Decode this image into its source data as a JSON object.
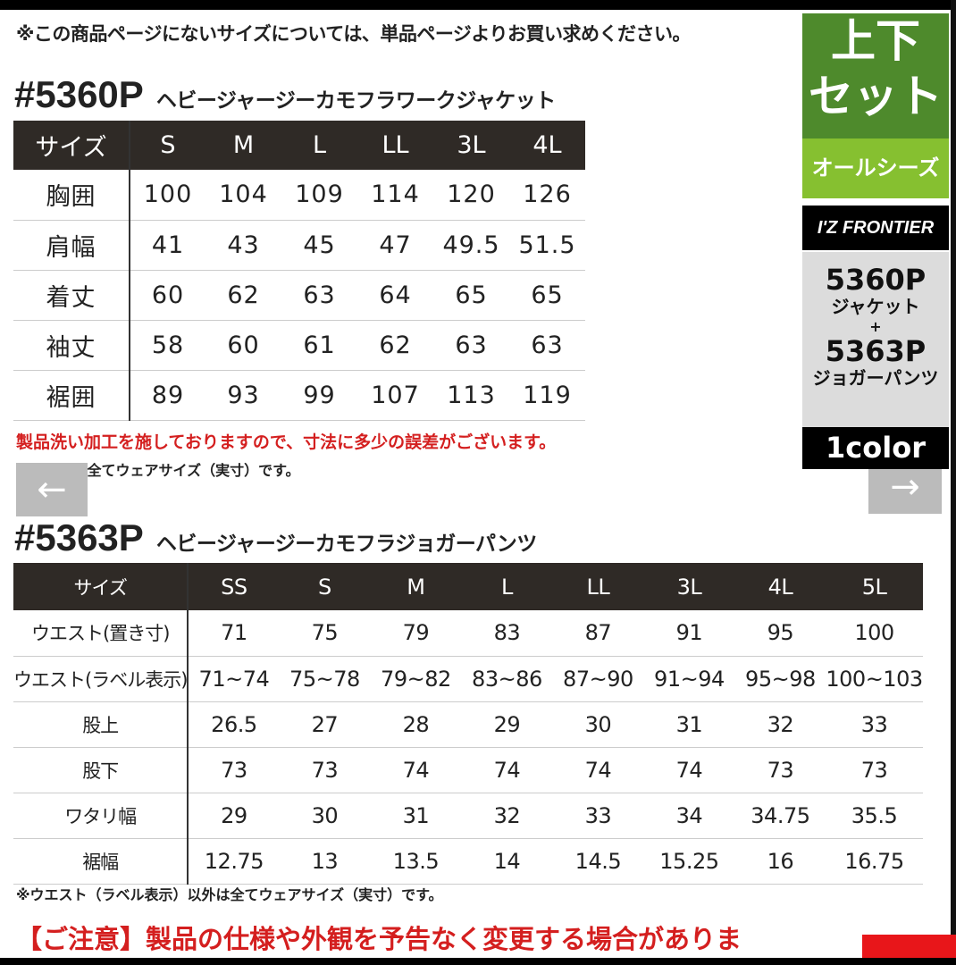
{
  "top_note": "※この商品ページにないサイズについては、単品ページよりお買い求めください。",
  "jacket": {
    "code": "#5360P",
    "name": "ヘビージャージーカモフラワークジャケット",
    "header_label": "サイズ",
    "sizes": [
      "S",
      "M",
      "L",
      "LL",
      "3L",
      "4L"
    ],
    "rows": [
      {
        "label": "胸囲",
        "values": [
          "100",
          "104",
          "109",
          "114",
          "120",
          "126"
        ]
      },
      {
        "label": "肩幅",
        "values": [
          "41",
          "43",
          "45",
          "47",
          "49.5",
          "51.5"
        ]
      },
      {
        "label": "着丈",
        "values": [
          "60",
          "62",
          "63",
          "64",
          "65",
          "65"
        ]
      },
      {
        "label": "袖丈",
        "values": [
          "58",
          "60",
          "61",
          "62",
          "63",
          "63"
        ]
      },
      {
        "label": "裾囲",
        "values": [
          "89",
          "93",
          "99",
          "107",
          "113",
          "119"
        ]
      }
    ],
    "note_red": "製品洗い加工を施しておりますので、寸法に多少の誤差がございます。",
    "note": "※これらは全てウェアサイズ（実寸）です。"
  },
  "pants": {
    "code": "#5363P",
    "name": "ヘビージャージーカモフラジョガーパンツ",
    "header_label": "サイズ",
    "sizes": [
      "SS",
      "S",
      "M",
      "L",
      "LL",
      "3L",
      "4L",
      "5L"
    ],
    "rows": [
      {
        "label": "ウエスト(置き寸)",
        "values": [
          "71",
          "75",
          "79",
          "83",
          "87",
          "91",
          "95",
          "100"
        ]
      },
      {
        "label": "ウエスト(ラベル表示)",
        "values": [
          "71~74",
          "75~78",
          "79~82",
          "83~86",
          "87~90",
          "91~94",
          "95~98",
          "100~103"
        ]
      },
      {
        "label": "股上",
        "values": [
          "26.5",
          "27",
          "28",
          "29",
          "30",
          "31",
          "32",
          "33"
        ]
      },
      {
        "label": "股下",
        "values": [
          "73",
          "73",
          "74",
          "74",
          "74",
          "74",
          "73",
          "73"
        ]
      },
      {
        "label": "ワタリ幅",
        "values": [
          "29",
          "30",
          "31",
          "32",
          "33",
          "34",
          "34.75",
          "35.5"
        ]
      },
      {
        "label": "裾幅",
        "values": [
          "12.75",
          "13",
          "13.5",
          "14",
          "14.5",
          "15.25",
          "16",
          "16.75"
        ]
      }
    ],
    "note": "※ウエスト（ラベル表示）以外は全てウェアサイズ（実寸）です。"
  },
  "caution": "【ご注意】製品の仕様や外観を予告なく変更する場合がありま",
  "side_panel": {
    "set_line1": "上下",
    "set_line2": "セット",
    "season": "オールシーズン",
    "brand": "I'Z FRONTIER",
    "item1_code": "5360P",
    "item1_name": "ジャケット",
    "plus": "+",
    "item2_code": "5363P",
    "item2_name": "ジョガーパンツ",
    "colors": "1color"
  },
  "nav": {
    "prev_icon": "arrow-left-icon",
    "next_icon": "arrow-right-icon",
    "prev": "←",
    "next": "→"
  },
  "colors": {
    "header_bg": "#2f2a26",
    "green": "#4e8a2c",
    "light_green": "#86c030",
    "red": "#d41f1f"
  }
}
